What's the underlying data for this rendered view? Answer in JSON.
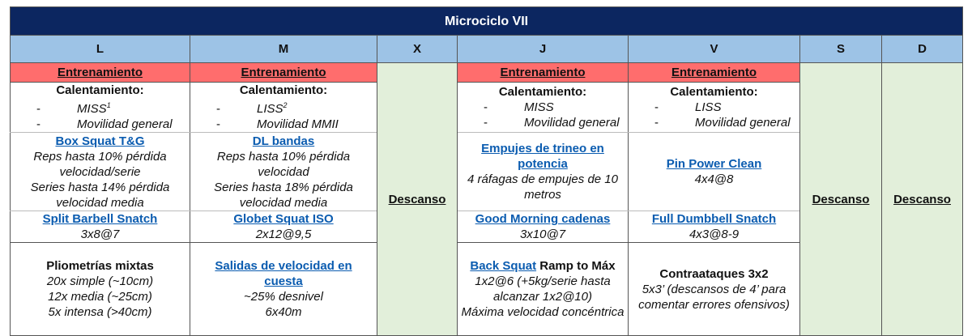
{
  "title": "Microciclo VII",
  "days": [
    "L",
    "M",
    "X",
    "J",
    "V",
    "S",
    "D"
  ],
  "entrenamiento": "Entrenamiento",
  "descanso": "Descanso",
  "calentamiento": {
    "label": "Calentamiento:",
    "L": [
      "MISS",
      "Movilidad general"
    ],
    "L_sup": "1",
    "M": [
      "LISS",
      "Movilidad MMII"
    ],
    "M_sup": "2",
    "J": [
      "MISS",
      "Movilidad general"
    ],
    "V": [
      "LISS",
      "Movilidad general"
    ]
  },
  "ex1": {
    "L": {
      "name": "Box Squat T&G",
      "lines": [
        "Reps hasta 10% pérdida velocidad/serie",
        "Series hasta 14% pérdida velocidad media"
      ]
    },
    "M": {
      "name": "DL bandas",
      "lines": [
        "Reps hasta 10% pérdida velocidad",
        "Series hasta 18% pérdida velocidad media"
      ]
    },
    "J": {
      "name": "Empujes de trineo en potencia",
      "lines": [
        "4 ráfagas de empujes de 10 metros"
      ]
    },
    "V": {
      "name": "Pin Power Clean",
      "lines": [
        "4x4@8"
      ]
    }
  },
  "ex2": {
    "L": {
      "name": "Split Barbell Snatch",
      "lines": [
        "3x8@7"
      ]
    },
    "M": {
      "name": "Globet Squat ISO",
      "lines": [
        "2x12@9,5"
      ]
    },
    "J": {
      "name": "Good Morning cadenas",
      "lines": [
        "3x10@7"
      ]
    },
    "V": {
      "name": "Full Dumbbell Snatch",
      "lines": [
        "4x3@8-9"
      ]
    }
  },
  "ex3": {
    "L": {
      "name": "Pliometrías mixtas",
      "lines": [
        "20x simple (~10cm)",
        "12x media (~25cm)",
        "5x intensa (>40cm)"
      ]
    },
    "M": {
      "name": "Salidas de velocidad en cuesta",
      "lines": [
        "~25% desnivel",
        "6x40m"
      ]
    },
    "J": {
      "name": "Back Squat",
      "name_rest": "Ramp to Máx",
      "lines": [
        "1x2@6 (+5kg/serie hasta alcanzar 1x2@10)",
        "Máxima velocidad concéntrica"
      ]
    },
    "V": {
      "name": "Contraataques 3x2",
      "lines": [
        "5x3’ (descansos de 4’ para comentar errores ofensivos)"
      ]
    }
  },
  "colors": {
    "title_bg": "#0c2660",
    "header_bg": "#9dc3e6",
    "training_bg": "#ff6d6d",
    "rest_bg": "#e2efda",
    "link": "#0b5cb0"
  }
}
